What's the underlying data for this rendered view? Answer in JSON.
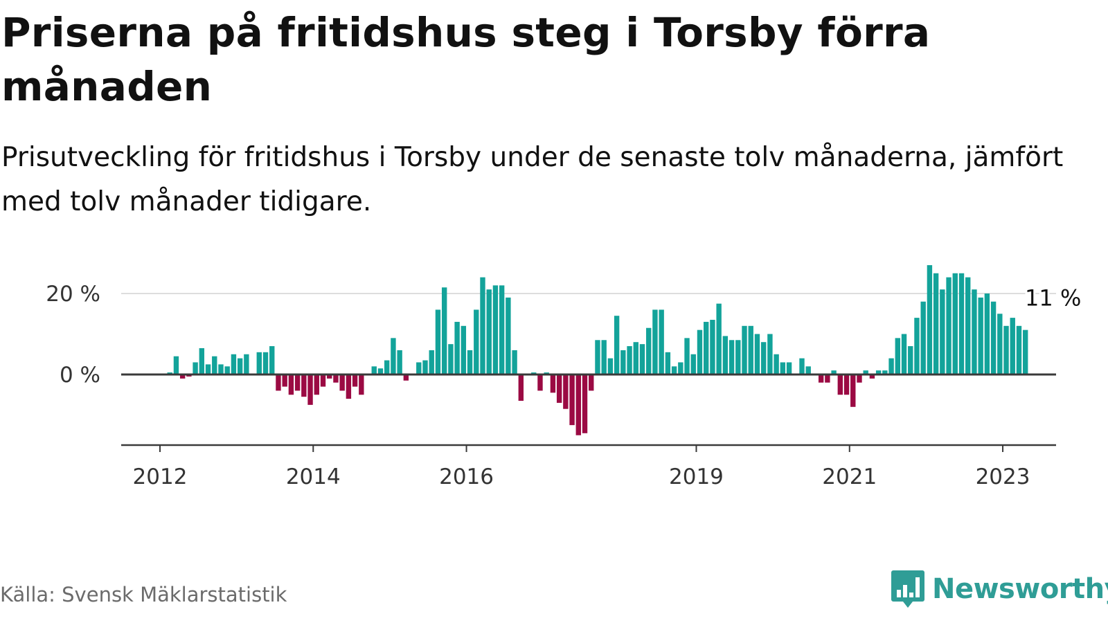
{
  "title": "Priserna på fritidshus steg i Torsby förra månaden",
  "subtitle": "Prisutveckling för fritidshus i Torsby under de senaste tolv månaderna, jämfört med tolv månader tidigare.",
  "source": "Källa: Svensk Mäklarstatistik",
  "brand": {
    "name": "Newsworthy",
    "logo_icon": "bar-chart-speech-bubble-icon",
    "color": "#2f9d96"
  },
  "colors": {
    "positive": "#13a39a",
    "negative": "#9b0a43",
    "axis": "#3a3a3a",
    "grid": "#dddddd"
  },
  "chart_data": {
    "type": "bar",
    "title": "Priserna på fritidshus steg i Torsby förra månaden",
    "xlabel": "",
    "ylabel": "",
    "ylim": [
      -18,
      27
    ],
    "yticks": [
      0,
      20
    ],
    "ytick_labels": [
      "0 %",
      "20 %"
    ],
    "xticks": [
      "2012",
      "2014",
      "2016",
      "2019",
      "2021",
      "2023"
    ],
    "grid": true,
    "legend": "none",
    "last_value_label": "11 %",
    "series": [
      {
        "name": "",
        "start": "2012-01",
        "values": [
          0,
          0.5,
          4.5,
          -1,
          -0.5,
          3,
          6.5,
          2.5,
          4.5,
          2.5,
          2,
          5,
          4,
          5,
          0,
          5.5,
          5.5,
          7,
          -4,
          -3,
          -5,
          -4,
          -5.5,
          -7.5,
          -5,
          -3,
          -1,
          -2,
          -4,
          -6,
          -3,
          -5,
          0,
          2,
          1.5,
          3.5,
          9,
          6,
          -1.5,
          0,
          3,
          3.5,
          6,
          16,
          21.5,
          7.5,
          13,
          12,
          6,
          16,
          24,
          21,
          22,
          22,
          19,
          6,
          -6.5,
          0,
          0.5,
          -4,
          0.5,
          -4.5,
          -7,
          -8.5,
          -12.5,
          -15,
          -14.5,
          -4,
          8.5,
          8.5,
          4,
          14.5,
          6,
          7,
          8,
          7.5,
          11.5,
          16,
          16,
          5.5,
          2,
          3,
          9,
          5,
          11,
          13,
          13.5,
          17.5,
          9.5,
          8.5,
          8.5,
          12,
          12,
          10,
          8,
          10,
          5,
          3,
          3,
          0,
          4,
          2,
          0,
          -2,
          -2,
          1,
          -5,
          -5,
          -8,
          -2,
          1,
          -1,
          1,
          1,
          4,
          9,
          10,
          7,
          14,
          18,
          27,
          25,
          21,
          24,
          25,
          25,
          24,
          21,
          19,
          20,
          18,
          15,
          12,
          14,
          12,
          11
        ]
      }
    ]
  }
}
